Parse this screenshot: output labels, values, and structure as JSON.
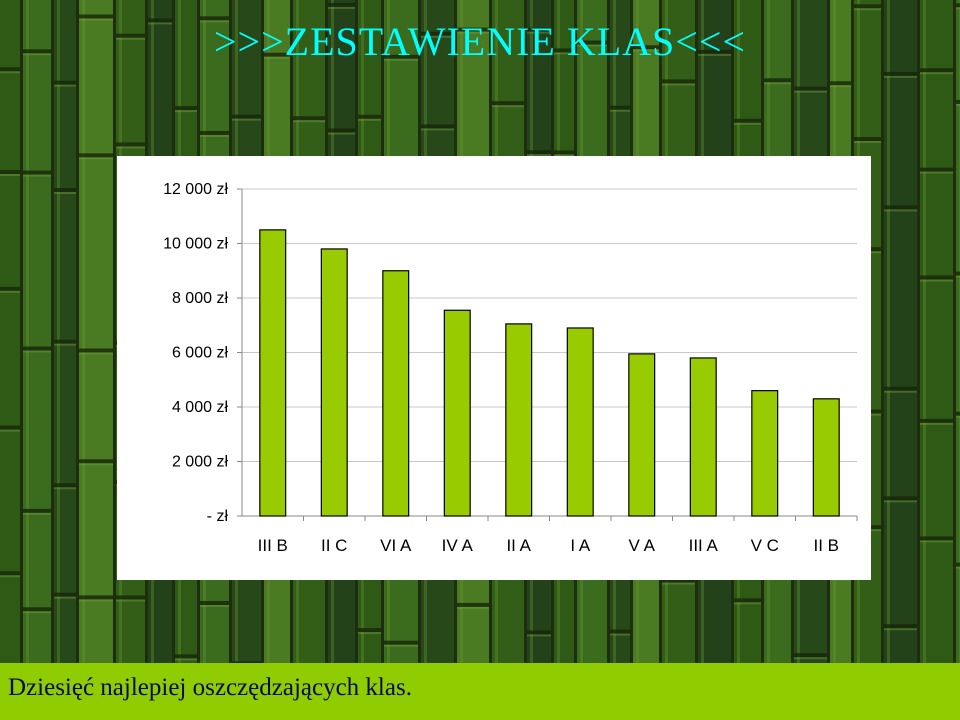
{
  "title": ">>>ZESTAWIENIE KLAS<<<",
  "footer": "Dziesięć najlepiej oszczędzających klas.",
  "colors": {
    "bar_fill": "#99cc00",
    "bar_stroke": "#000000",
    "title": "#00ffff",
    "footer_bar": "#8fcc00",
    "footer_text": "#0a0a50"
  },
  "chart_data": {
    "type": "bar",
    "categories": [
      "III B",
      "II C",
      "VI A",
      "IV A",
      "II A",
      "I A",
      "V A",
      "III A",
      "V C",
      "II B"
    ],
    "values": [
      10500,
      9800,
      9000,
      7550,
      7050,
      6900,
      5950,
      5800,
      4600,
      4300
    ],
    "ylim": [
      0,
      12000
    ],
    "yticks": [
      0,
      2000,
      4000,
      6000,
      8000,
      10000,
      12000
    ],
    "ytick_labels": [
      "- zł",
      "2 000 zł",
      "4 000 zł",
      "6 000 zł",
      "8 000 zł",
      "10 000 zł",
      "12 000 zł"
    ],
    "grid": true,
    "legend": "none"
  }
}
